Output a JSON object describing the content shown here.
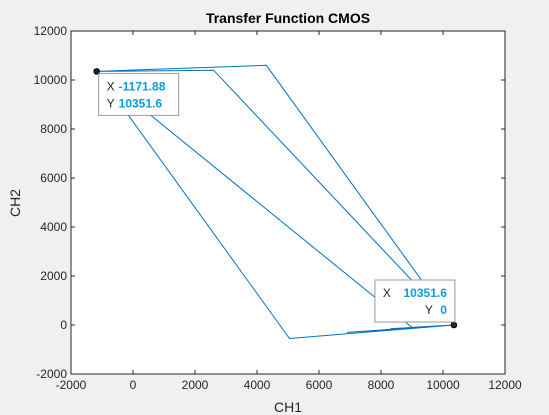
{
  "chart_data": {
    "type": "line",
    "title": "Transfer Function CMOS",
    "xlabel": "CH1",
    "ylabel": "CH2",
    "xlim": [
      -2000,
      12000
    ],
    "ylim": [
      -2000,
      12000
    ],
    "xticks": [
      "-2000",
      "0",
      "2000",
      "4000",
      "6000",
      "8000",
      "10000",
      "12000"
    ],
    "yticks": [
      "-2000",
      "0",
      "2000",
      "4000",
      "6000",
      "8000",
      "10000",
      "12000"
    ],
    "grid": false,
    "series_color": "#0072bd",
    "series": [
      {
        "x": [
          -1171.88,
          2600,
          10351.6,
          8300,
          10351.6,
          9000,
          -1171.88,
          4300,
          10351.6,
          6900,
          10351.6,
          5050,
          -1171.88
        ],
        "y": [
          10351.6,
          10400,
          0,
          -150,
          0,
          -100,
          10351.6,
          10600,
          0,
          -300,
          0,
          -550,
          10351.6
        ]
      }
    ],
    "datatips": [
      {
        "x_key": "X",
        "x_value": "-1171.88",
        "y_key": "Y",
        "y_value": "10351.6",
        "at": [
          -1171.88,
          10351.6
        ]
      },
      {
        "x_key": "X",
        "x_value": "10351.6",
        "y_key": "Y",
        "y_value": "0",
        "at": [
          10351.6,
          0
        ]
      }
    ]
  }
}
